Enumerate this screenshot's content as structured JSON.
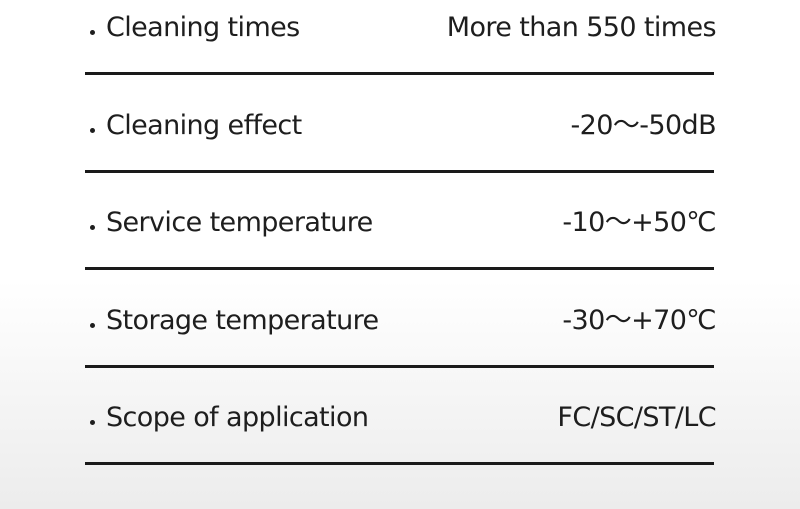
{
  "table": {
    "rows": [
      [
        "Cleaning times",
        "More than 550 times"
      ],
      [
        "Cleaning effect",
        "-20～-50dB"
      ],
      [
        "Service temperature",
        "-10～+50℃"
      ],
      [
        "Storage temperature",
        "-30～+70℃"
      ],
      [
        "Scope of application",
        "FC/SC/ST/LC"
      ]
    ]
  }
}
